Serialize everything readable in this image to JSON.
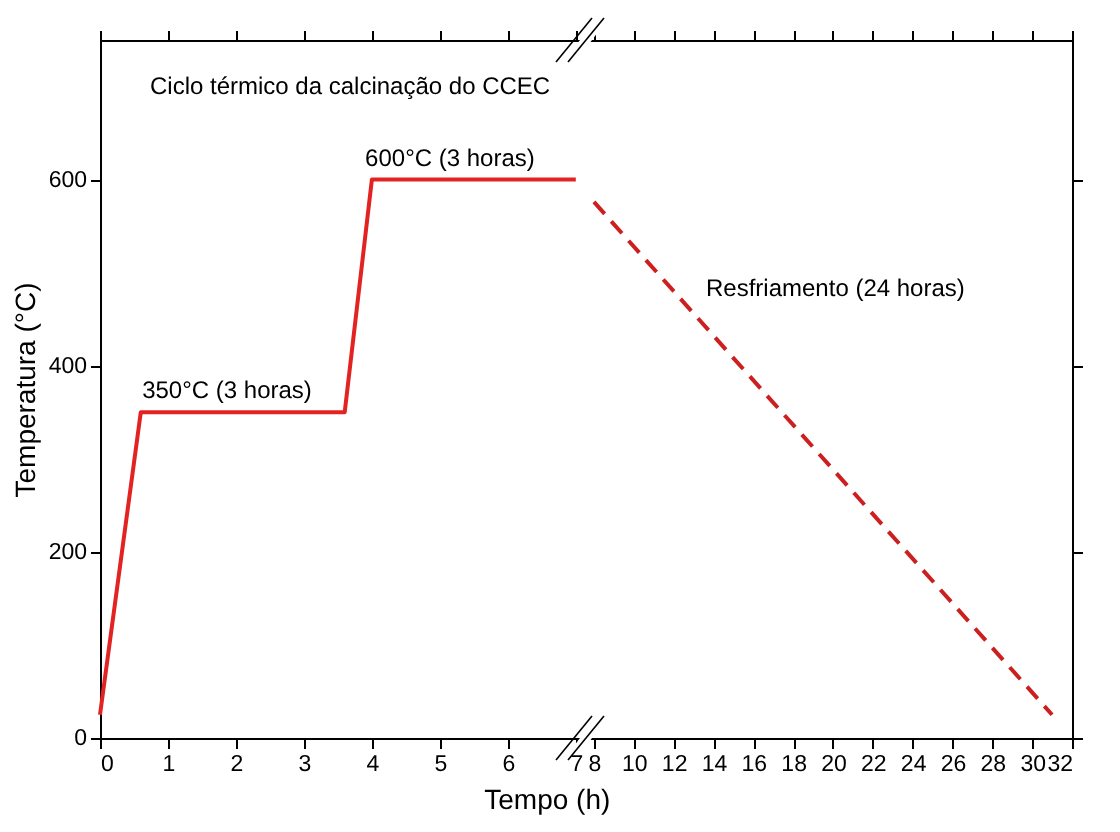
{
  "chart_data": [
    {
      "type": "line",
      "xlabel": "Tempo (h)",
      "ylabel": "Temperatura (°C)",
      "xlim": [
        0,
        7.15
      ],
      "xticks": [
        0,
        1,
        2,
        3,
        4,
        5,
        6,
        7
      ],
      "ylim": [
        0,
        750
      ],
      "yticks": [
        0,
        200,
        400,
        600
      ],
      "line_style": "solid",
      "series": [
        {
          "color": "#e32222",
          "x": [
            0,
            0.6,
            3.6,
            4,
            7
          ],
          "values": [
            25,
            350,
            350,
            600,
            600
          ]
        }
      ],
      "annotations": [
        "Ciclo térmico da calcinação do CCEC",
        {
          "text": "350°C (3 horas)",
          "x": 0.62,
          "y": 350
        },
        {
          "text": "600°C (3 horas)",
          "x": 3.9,
          "y": 600
        }
      ]
    },
    {
      "type": "line",
      "xlim": [
        7.6,
        32
      ],
      "xticks": [
        8,
        10,
        12,
        14,
        16,
        18,
        20,
        22,
        24,
        26,
        28,
        30,
        32
      ],
      "ylim": [
        0,
        750
      ],
      "yticks": [
        0,
        200,
        400,
        600
      ],
      "tick_labels": "x",
      "line_style": "dashed",
      "series": [
        {
          "color": "#cc2020",
          "x": [
            8,
            31
          ],
          "values": [
            576,
            25
          ]
        }
      ],
      "annotations": [
        "Resfriamento (24 horas)"
      ]
    }
  ]
}
